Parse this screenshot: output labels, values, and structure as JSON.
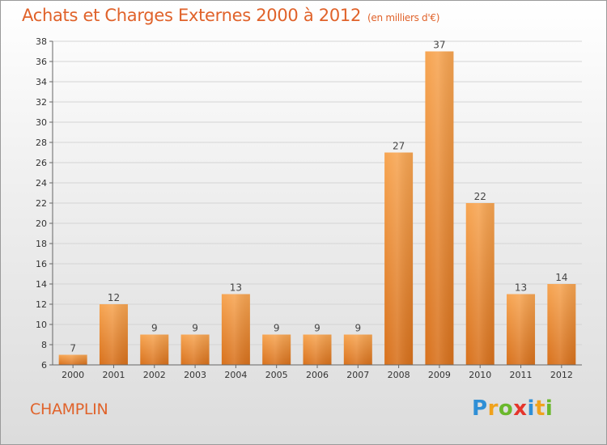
{
  "title": "Achats et Charges Externes 2000 à 2012",
  "unit": "(en milliers d'€)",
  "commune": "CHAMPLIN",
  "logo": {
    "text": "Proxiti",
    "letters": [
      {
        "char": "P",
        "color": "#2f8fd6"
      },
      {
        "char": "r",
        "color": "#f0a21c"
      },
      {
        "char": "o",
        "color": "#6ab82c"
      },
      {
        "char": "x",
        "color": "#e5352b"
      },
      {
        "char": "i",
        "color": "#2f8fd6"
      },
      {
        "char": "t",
        "color": "#f0a21c"
      },
      {
        "char": "i",
        "color": "#6ab82c"
      }
    ]
  },
  "colors": {
    "title": "#e0622a",
    "bar_light": "#f7a552",
    "bar_dark": "#d8711c",
    "grid": "#d4d4d4"
  },
  "chart_data": {
    "type": "bar",
    "title": "Achats et Charges Externes 2000 à 2012",
    "subtitle": "(en milliers d'€)",
    "categories": [
      "2000",
      "2001",
      "2002",
      "2003",
      "2004",
      "2005",
      "2006",
      "2007",
      "2008",
      "2009",
      "2010",
      "2011",
      "2012"
    ],
    "values": [
      7,
      12,
      9,
      9,
      13,
      9,
      9,
      9,
      27,
      37,
      22,
      13,
      14
    ],
    "ylim": [
      6,
      38
    ],
    "yticks": [
      6,
      8,
      10,
      12,
      14,
      16,
      18,
      20,
      22,
      24,
      26,
      28,
      30,
      32,
      34,
      36,
      38
    ],
    "grid": true,
    "data_labels": true,
    "xlabel": "",
    "ylabel": ""
  }
}
